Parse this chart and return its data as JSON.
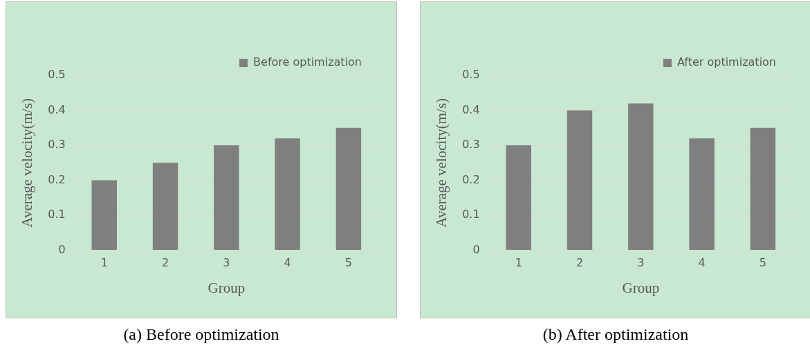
{
  "chart_data": [
    {
      "type": "bar",
      "categories": [
        "1",
        "2",
        "3",
        "4",
        "5"
      ],
      "xlabel": "Group",
      "ylabel": "Average velocity(m/s)",
      "series": [
        {
          "name": "Before optimization",
          "color": "#7f7f7f",
          "values": [
            0.2,
            0.25,
            0.3,
            0.32,
            0.35
          ]
        }
      ],
      "ylim": [
        0,
        0.5
      ],
      "yticks": [
        0,
        0.1,
        0.2,
        0.3,
        0.4,
        0.5
      ],
      "grid": "y",
      "legend": "top right",
      "annotations": [
        "(a) Before optimization"
      ]
    },
    {
      "type": "bar",
      "categories": [
        "1",
        "2",
        "3",
        "4",
        "5"
      ],
      "xlabel": "Group",
      "ylabel": "Average velocity(m/s)",
      "series": [
        {
          "name": "After optimization",
          "color": "#7f7f7f",
          "values": [
            0.3,
            0.4,
            0.42,
            0.32,
            0.35
          ]
        }
      ],
      "ylim": [
        0,
        0.5
      ],
      "yticks": [
        0,
        0.1,
        0.2,
        0.3,
        0.4,
        0.5
      ],
      "grid": "y",
      "legend": "top right",
      "annotations": [
        "(b) After optimization"
      ]
    }
  ]
}
